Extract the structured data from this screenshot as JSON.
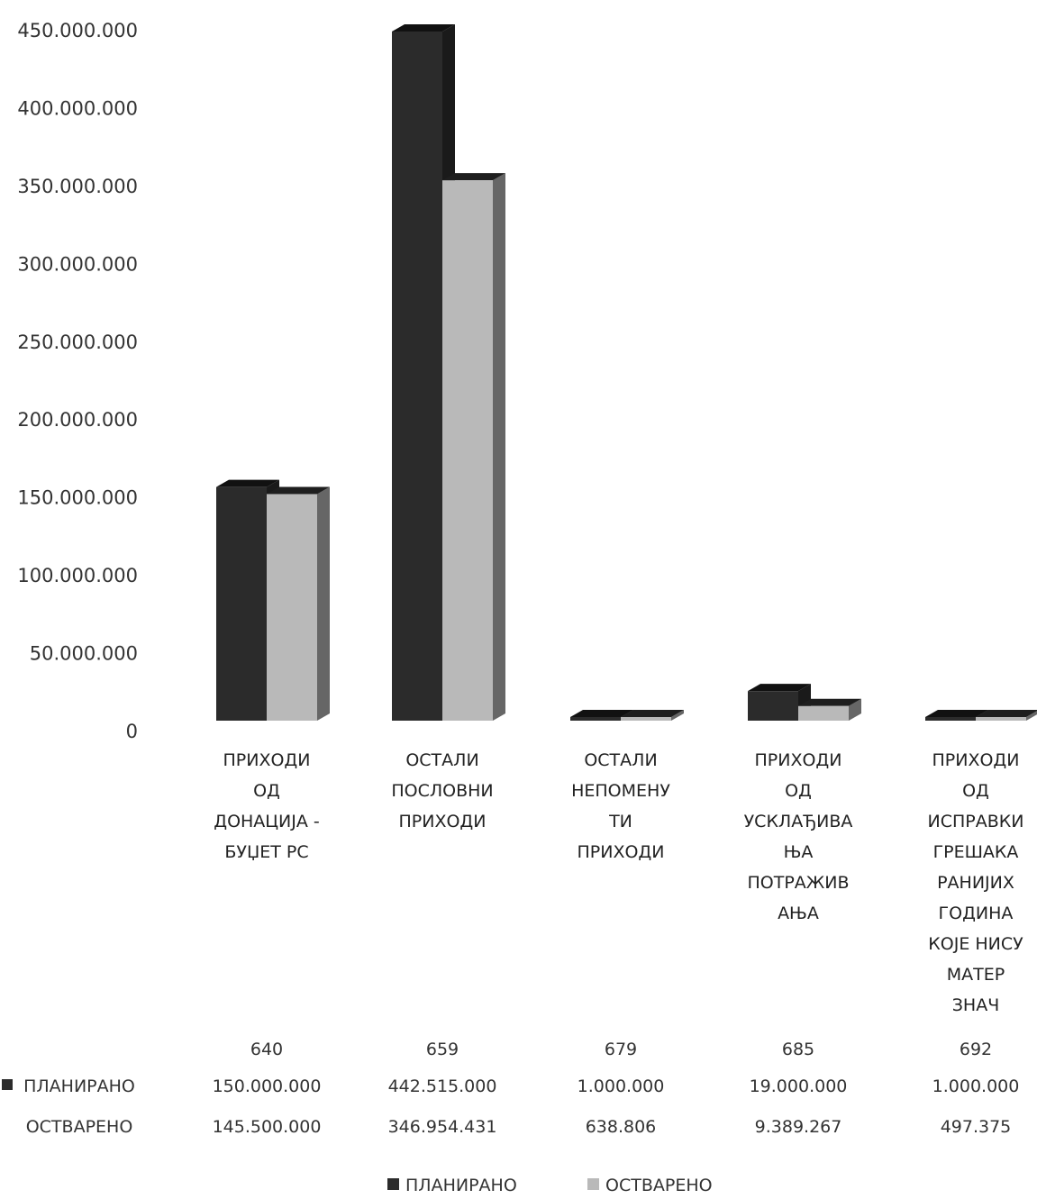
{
  "chart_data": {
    "type": "bar",
    "title": "",
    "xlabel": "",
    "ylabel": "",
    "ylim": [
      0,
      450000000
    ],
    "y_ticks": [
      "0",
      "50.000.000",
      "100.000.000",
      "150.000.000",
      "200.000.000",
      "250.000.000",
      "300.000.000",
      "350.000.000",
      "400.000.000",
      "450.000.000"
    ],
    "y_tick_values": [
      0,
      50000000,
      100000000,
      150000000,
      200000000,
      250000000,
      300000000,
      350000000,
      400000000,
      450000000
    ],
    "grid": false,
    "style": "3d-clustered-column",
    "legend_position": "bottom",
    "categories": [
      [
        "ПРИХОДИ",
        "ОД",
        "ДОНАЦИЈА -",
        "БУЏЕТ РС"
      ],
      [
        "ОСТАЛИ",
        "ПОСЛОВНИ",
        "ПРИХОДИ"
      ],
      [
        "ОСТАЛИ",
        "НЕПОМЕНУ",
        "ТИ",
        "ПРИХОДИ"
      ],
      [
        "ПРИХОДИ",
        "ОД",
        "УСКЛАЂИВА",
        "ЊА",
        "ПОТРАЖИВ",
        "АЊА"
      ],
      [
        "ПРИХОДИ",
        "ОД",
        "ИСПРАВКИ",
        "ГРЕШАКА",
        "РАНИЈИХ",
        "ГОДИНА",
        "КОЈЕ НИСУ",
        "МАТЕР",
        "ЗНАЧ"
      ]
    ],
    "category_codes": [
      "640",
      "659",
      "679",
      "685",
      "692"
    ],
    "series": [
      {
        "name": "ПЛАНИРАНО",
        "values": [
          150000000,
          442515000,
          1000000,
          19000000,
          1000000
        ],
        "labels": [
          "150.000.000",
          "442.515.000",
          "1.000.000",
          "19.000.000",
          "1.000.000"
        ],
        "color": "#2b2b2b"
      },
      {
        "name": "ОСТВАРЕНО",
        "values": [
          145500000,
          346954431,
          638806,
          9389267,
          497375
        ],
        "labels": [
          "145.500.000",
          "346.954.431",
          "638.806",
          "9.389.267",
          "497.375"
        ],
        "color": "#b9b9b9"
      }
    ]
  }
}
